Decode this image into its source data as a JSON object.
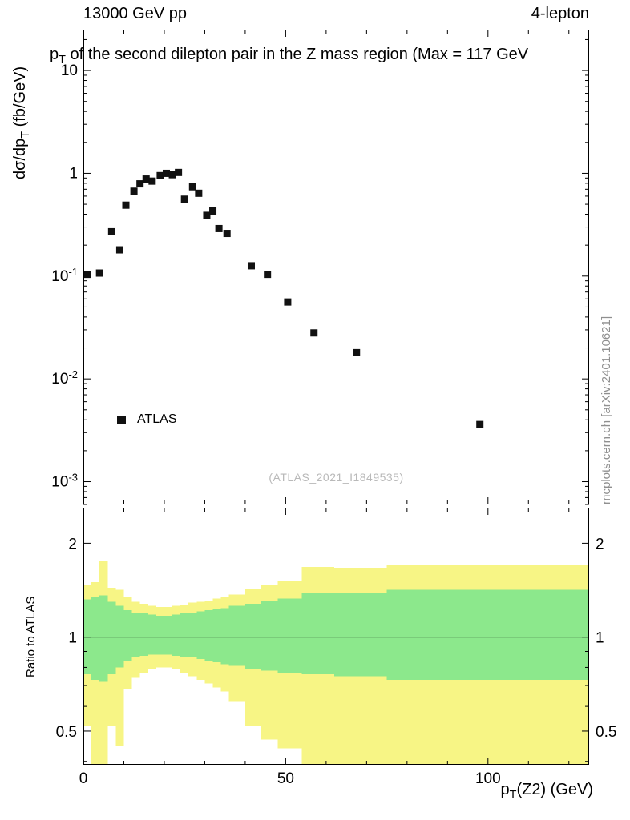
{
  "header": {
    "left": "13000 GeV pp",
    "right": "4-lepton"
  },
  "side_note": "mcplots.cern.ch [arXiv:2401.10621]",
  "xlabel_parts": {
    "pre": "p",
    "sub": "T",
    "rest": "(Z2) (GeV)"
  },
  "chart_data": [
    {
      "type": "scatter",
      "panel": "main",
      "title": "pT of the second dilepton pair in the Z mass region (Max = 117 GeV",
      "title_parts": {
        "pre": "p",
        "sub": "T",
        "rest": " of the second dilepton pair in the Z mass region (Max = 117 GeV"
      },
      "ylabel": "dσ/dpT (fb/GeV)",
      "ylabel_parts": {
        "pre": "dσ/dp",
        "sub": "T",
        "rest": " (fb/GeV)"
      },
      "xlabel": "pT(Z2) (GeV)",
      "yscale": "log",
      "xlim": [
        0,
        125
      ],
      "ylim": [
        0.0006,
        25
      ],
      "grid": false,
      "xminor_step": 10,
      "xticks": [
        {
          "v": 0,
          "label": "0"
        },
        {
          "v": 50,
          "label": "50"
        },
        {
          "v": 100,
          "label": "100"
        }
      ],
      "yticks": [
        {
          "v": 10,
          "base": "10"
        },
        {
          "v": 1,
          "base": "1"
        },
        {
          "v": 0.1,
          "base": "10",
          "exp": "-1"
        },
        {
          "v": 0.01,
          "base": "10",
          "exp": "-2"
        },
        {
          "v": 0.001,
          "base": "10",
          "exp": "-3"
        }
      ],
      "legend": {
        "label": "ATLAS",
        "position": "inside-left"
      },
      "watermark": "(ATLAS_2021_I1849535)",
      "marker": {
        "shape": "square",
        "color": "#111111",
        "size": 9
      },
      "series": [
        {
          "name": "ATLAS",
          "x": [
            1,
            4,
            7,
            9,
            10.5,
            12.5,
            14,
            15.5,
            17,
            19,
            20.5,
            22,
            23.5,
            25,
            27,
            28.5,
            30.5,
            32,
            33.5,
            35.5,
            41.5,
            45.5,
            50.5,
            57,
            67.5,
            98
          ],
          "y": [
            0.104,
            0.107,
            0.27,
            0.18,
            0.49,
            0.67,
            0.79,
            0.88,
            0.84,
            0.95,
            1.0,
            0.97,
            1.02,
            0.56,
            0.74,
            0.64,
            0.39,
            0.43,
            0.29,
            0.26,
            0.126,
            0.104,
            0.056,
            0.028,
            0.018,
            0.0036
          ]
        }
      ]
    },
    {
      "type": "band",
      "panel": "ratio",
      "ylabel": "Ratio to ATLAS",
      "yscale": "log",
      "xlim": [
        0,
        125
      ],
      "ylim": [
        0.39,
        2.6
      ],
      "xminor_step": 10,
      "xticks": [
        {
          "v": 0,
          "label": "0"
        },
        {
          "v": 50,
          "label": "50"
        },
        {
          "v": 100,
          "label": "100"
        }
      ],
      "yticks": [
        {
          "v": 0.5,
          "label": "0.5"
        },
        {
          "v": 1,
          "label": "1"
        },
        {
          "v": 2,
          "label": "2"
        }
      ],
      "yminor": [
        0.4,
        0.6,
        0.7,
        0.8,
        0.9
      ],
      "reference_line": 1.0,
      "band_colors": {
        "inner": "#8ce88c",
        "outer": "#f7f585"
      },
      "band_bins_format": [
        "x0",
        "x1",
        "inner_lo",
        "inner_hi",
        "outer_lo",
        "outer_hi"
      ],
      "band_bins": [
        [
          0,
          2,
          0.76,
          1.32,
          0.52,
          1.47
        ],
        [
          2,
          4,
          0.73,
          1.35,
          0.38,
          1.5
        ],
        [
          4,
          6,
          0.72,
          1.36,
          0.34,
          1.76
        ],
        [
          6,
          8,
          0.76,
          1.3,
          0.52,
          1.44
        ],
        [
          8,
          10,
          0.8,
          1.26,
          0.45,
          1.42
        ],
        [
          10,
          12,
          0.84,
          1.22,
          0.68,
          1.34
        ],
        [
          12,
          14,
          0.86,
          1.2,
          0.74,
          1.3
        ],
        [
          14,
          16,
          0.87,
          1.19,
          0.77,
          1.28
        ],
        [
          16,
          18,
          0.88,
          1.18,
          0.79,
          1.26
        ],
        [
          18,
          20,
          0.88,
          1.17,
          0.8,
          1.25
        ],
        [
          20,
          22,
          0.88,
          1.17,
          0.8,
          1.25
        ],
        [
          22,
          24,
          0.87,
          1.18,
          0.79,
          1.26
        ],
        [
          24,
          26,
          0.86,
          1.19,
          0.77,
          1.27
        ],
        [
          26,
          28,
          0.86,
          1.2,
          0.75,
          1.29
        ],
        [
          28,
          30,
          0.85,
          1.21,
          0.73,
          1.3
        ],
        [
          30,
          32,
          0.84,
          1.22,
          0.71,
          1.31
        ],
        [
          32,
          34,
          0.83,
          1.23,
          0.69,
          1.33
        ],
        [
          34,
          36,
          0.82,
          1.24,
          0.67,
          1.34
        ],
        [
          36,
          40,
          0.81,
          1.26,
          0.62,
          1.37
        ],
        [
          40,
          44,
          0.79,
          1.28,
          0.52,
          1.43
        ],
        [
          44,
          48,
          0.78,
          1.31,
          0.47,
          1.47
        ],
        [
          48,
          54,
          0.77,
          1.33,
          0.44,
          1.52
        ],
        [
          54,
          62,
          0.76,
          1.39,
          0.37,
          1.68
        ],
        [
          62,
          75,
          0.75,
          1.39,
          0.37,
          1.67
        ],
        [
          75,
          125,
          0.73,
          1.42,
          0.36,
          1.7
        ]
      ]
    }
  ]
}
